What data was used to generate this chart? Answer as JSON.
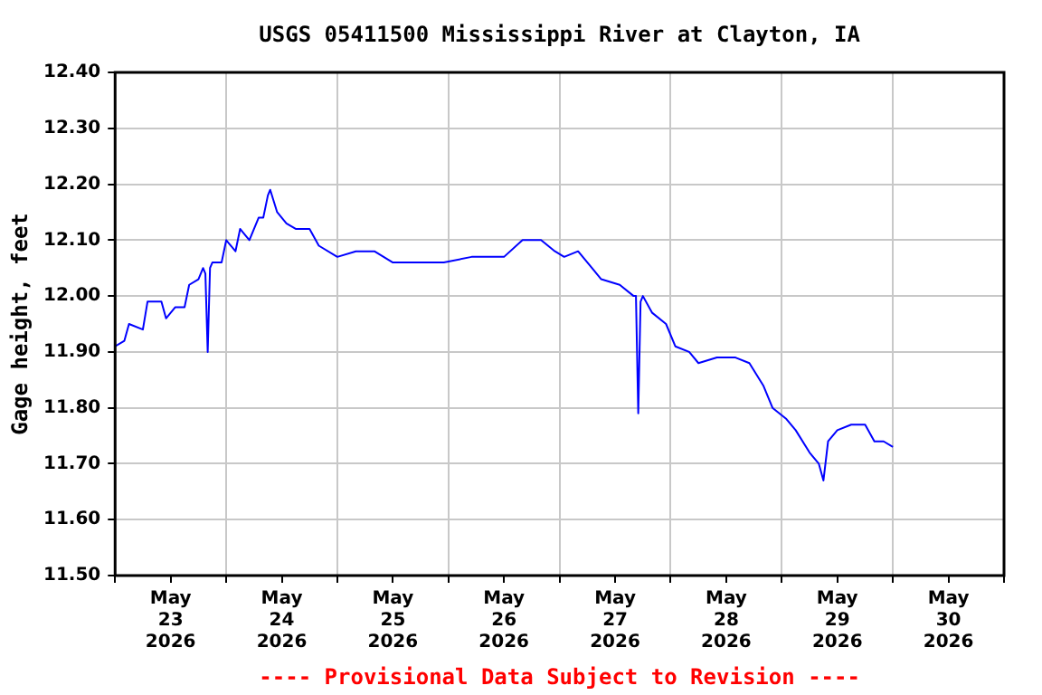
{
  "chart_data": {
    "type": "line",
    "title": "USGS 05411500 Mississippi River at Clayton, IA",
    "ylabel": "Gage height, feet",
    "annotations": [
      "---- Provisional Data Subject to Revision ----"
    ],
    "x": [
      "2026-05-23T00:00",
      "2026-05-23T02:00",
      "2026-05-23T03:00",
      "2026-05-23T06:00",
      "2026-05-23T07:00",
      "2026-05-23T10:00",
      "2026-05-23T11:00",
      "2026-05-23T13:00",
      "2026-05-23T15:00",
      "2026-05-23T16:00",
      "2026-05-23T18:00",
      "2026-05-23T19:00",
      "2026-05-23T19:30",
      "2026-05-23T20:00",
      "2026-05-23T20:30",
      "2026-05-23T21:00",
      "2026-05-23T23:00",
      "2026-05-24T00:00",
      "2026-05-24T02:00",
      "2026-05-24T03:00",
      "2026-05-24T05:00",
      "2026-05-24T07:00",
      "2026-05-24T08:00",
      "2026-05-24T09:00",
      "2026-05-24T09:30",
      "2026-05-24T11:00",
      "2026-05-24T13:00",
      "2026-05-24T15:00",
      "2026-05-24T18:00",
      "2026-05-24T20:00",
      "2026-05-25T00:00",
      "2026-05-25T04:00",
      "2026-05-25T08:00",
      "2026-05-25T12:00",
      "2026-05-25T16:00",
      "2026-05-25T20:00",
      "2026-05-25T23:00",
      "2026-05-26T05:00",
      "2026-05-26T09:00",
      "2026-05-26T12:00",
      "2026-05-26T16:00",
      "2026-05-26T20:00",
      "2026-05-26T23:00",
      "2026-05-27T01:00",
      "2026-05-27T04:00",
      "2026-05-27T07:00",
      "2026-05-27T09:00",
      "2026-05-27T13:00",
      "2026-05-27T16:00",
      "2026-05-27T16:30",
      "2026-05-27T17:00",
      "2026-05-27T17:30",
      "2026-05-27T18:00",
      "2026-05-27T20:00",
      "2026-05-27T23:00",
      "2026-05-28T01:00",
      "2026-05-28T04:00",
      "2026-05-28T06:00",
      "2026-05-28T10:00",
      "2026-05-28T14:00",
      "2026-05-28T17:00",
      "2026-05-28T20:00",
      "2026-05-28T22:00",
      "2026-05-29T01:00",
      "2026-05-29T03:00",
      "2026-05-29T06:00",
      "2026-05-29T08:00",
      "2026-05-29T09:00",
      "2026-05-29T10:00",
      "2026-05-29T12:00",
      "2026-05-29T15:00",
      "2026-05-29T18:00",
      "2026-05-29T20:00",
      "2026-05-29T22:00",
      "2026-05-30T00:00"
    ],
    "series": [
      {
        "color": "#0000ff",
        "values": [
          11.91,
          11.92,
          11.95,
          11.94,
          11.99,
          11.99,
          11.96,
          11.98,
          11.98,
          12.02,
          12.03,
          12.05,
          12.04,
          11.9,
          12.05,
          12.06,
          12.06,
          12.1,
          12.08,
          12.12,
          12.1,
          12.14,
          12.14,
          12.18,
          12.19,
          12.15,
          12.13,
          12.12,
          12.12,
          12.09,
          12.07,
          12.08,
          12.08,
          12.06,
          12.06,
          12.06,
          12.06,
          12.07,
          12.07,
          12.07,
          12.1,
          12.1,
          12.08,
          12.07,
          12.08,
          12.05,
          12.03,
          12.02,
          12.0,
          12.0,
          11.79,
          11.99,
          12.0,
          11.97,
          11.95,
          11.91,
          11.9,
          11.88,
          11.89,
          11.89,
          11.88,
          11.84,
          11.8,
          11.78,
          11.76,
          11.72,
          11.7,
          11.67,
          11.74,
          11.76,
          11.77,
          11.77,
          11.74,
          11.74,
          11.73
        ]
      }
    ],
    "xlim": [
      "2026-05-23T00:00",
      "2026-05-31T00:00"
    ],
    "xticks": [
      {
        "value": "2026-05-23T00:00",
        "label": null
      },
      {
        "value": "2026-05-23T12:00",
        "label": "May\n23\n2026"
      },
      {
        "value": "2026-05-24T00:00",
        "label": null
      },
      {
        "value": "2026-05-24T12:00",
        "label": "May\n24\n2026"
      },
      {
        "value": "2026-05-25T00:00",
        "label": null
      },
      {
        "value": "2026-05-25T12:00",
        "label": "May\n25\n2026"
      },
      {
        "value": "2026-05-26T00:00",
        "label": null
      },
      {
        "value": "2026-05-26T12:00",
        "label": "May\n26\n2026"
      },
      {
        "value": "2026-05-27T00:00",
        "label": null
      },
      {
        "value": "2026-05-27T12:00",
        "label": "May\n27\n2026"
      },
      {
        "value": "2026-05-28T00:00",
        "label": null
      },
      {
        "value": "2026-05-28T12:00",
        "label": "May\n28\n2026"
      },
      {
        "value": "2026-05-29T00:00",
        "label": null
      },
      {
        "value": "2026-05-29T12:00",
        "label": "May\n29\n2026"
      },
      {
        "value": "2026-05-30T00:00",
        "label": null
      },
      {
        "value": "2026-05-30T12:00",
        "label": "May\n30\n2026"
      },
      {
        "value": "2026-05-31T00:00",
        "label": null
      }
    ],
    "ylim": [
      11.5,
      12.4
    ],
    "yticks": [
      {
        "value": 11.5,
        "label": "11.50"
      },
      {
        "value": 11.6,
        "label": "11.60"
      },
      {
        "value": 11.7,
        "label": "11.70"
      },
      {
        "value": 11.8,
        "label": "11.80"
      },
      {
        "value": 11.9,
        "label": "11.90"
      },
      {
        "value": 12.0,
        "label": "12.00"
      },
      {
        "value": 12.1,
        "label": "12.10"
      },
      {
        "value": 12.2,
        "label": "12.20"
      },
      {
        "value": 12.3,
        "label": "12.30"
      },
      {
        "value": 12.4,
        "label": "12.40"
      }
    ],
    "grid": true,
    "line_style": "solid"
  }
}
